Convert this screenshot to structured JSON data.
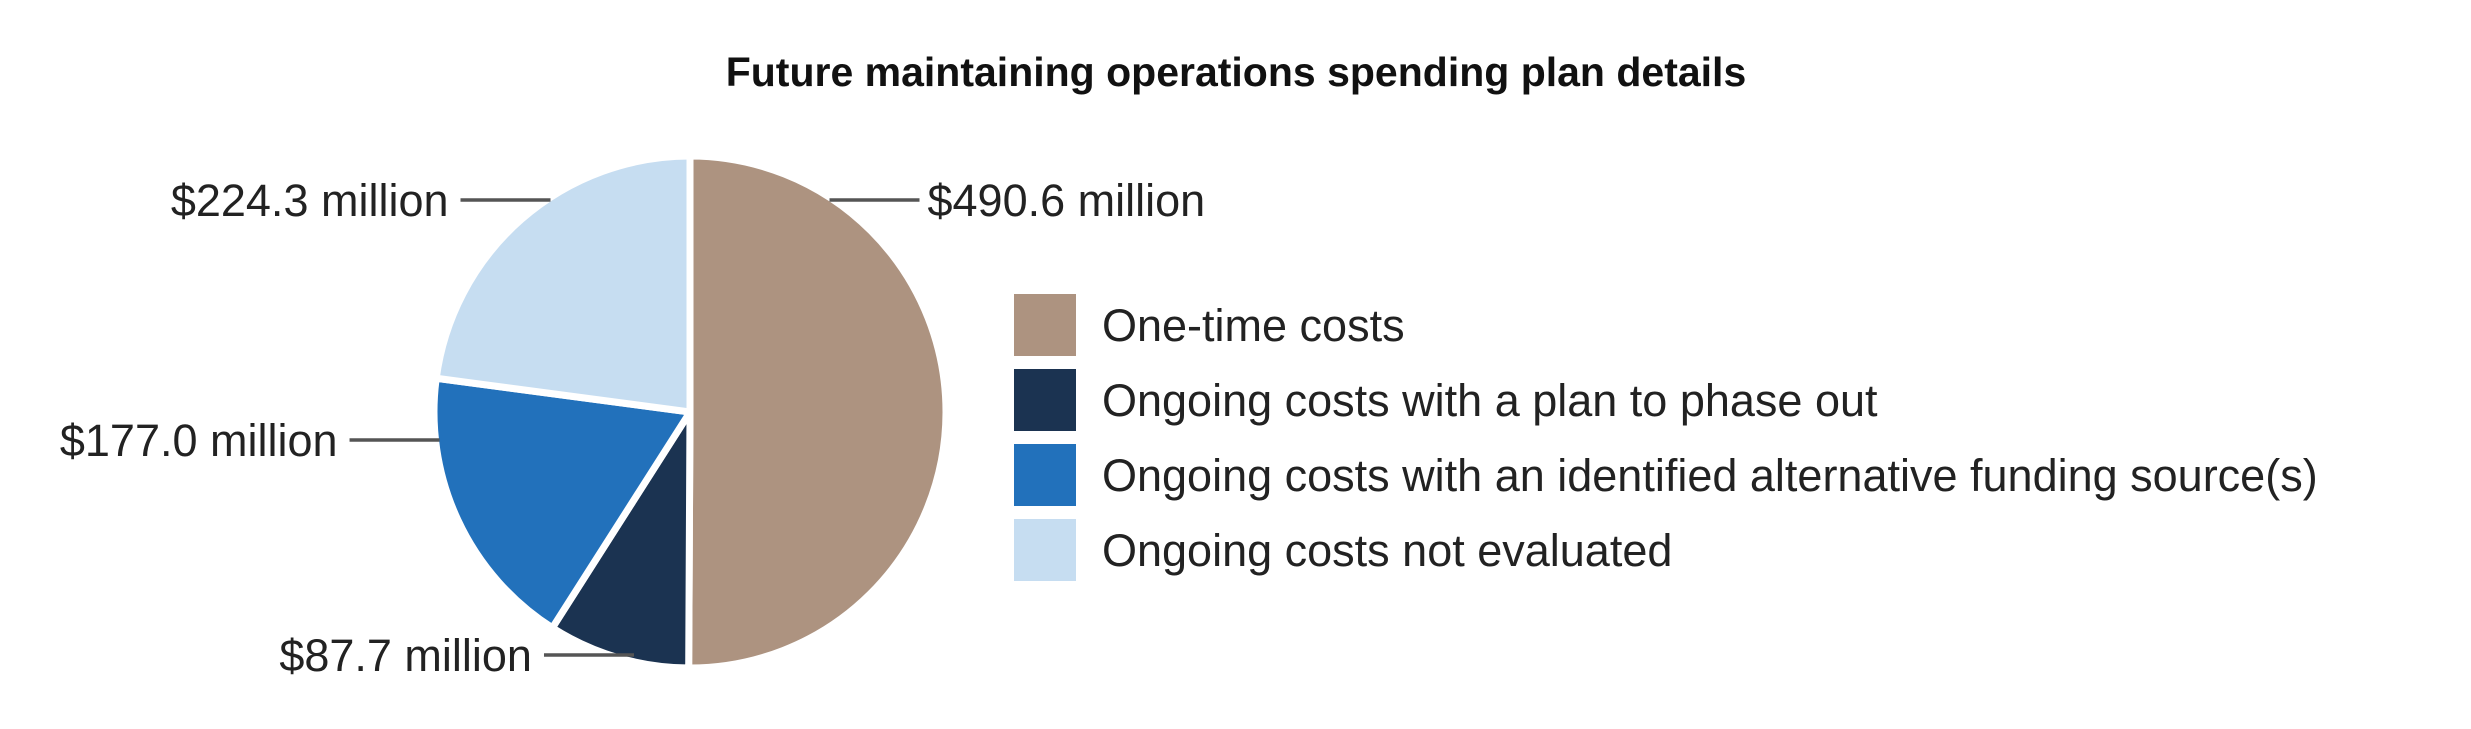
{
  "chart_data": {
    "type": "pie",
    "title": "Future maintaining operations spending plan details",
    "slices": [
      {
        "label": "One-time costs",
        "value": 490.6,
        "display": "$490.6 million",
        "color": "#ad9380"
      },
      {
        "label": "Ongoing costs with a plan to phase out",
        "value": 87.7,
        "display": "$87.7 million",
        "color": "#1b3351"
      },
      {
        "label": "Ongoing costs with an identified alternative funding source(s)",
        "value": 177.0,
        "display": "$177.0 million",
        "color": "#2271bb"
      },
      {
        "label": "Ongoing costs not evaluated",
        "value": 224.3,
        "display": "$224.3 million",
        "color": "#c6ddf1"
      }
    ],
    "start_angle": "12 o'clock",
    "direction": "clockwise",
    "legend_position": "right"
  }
}
